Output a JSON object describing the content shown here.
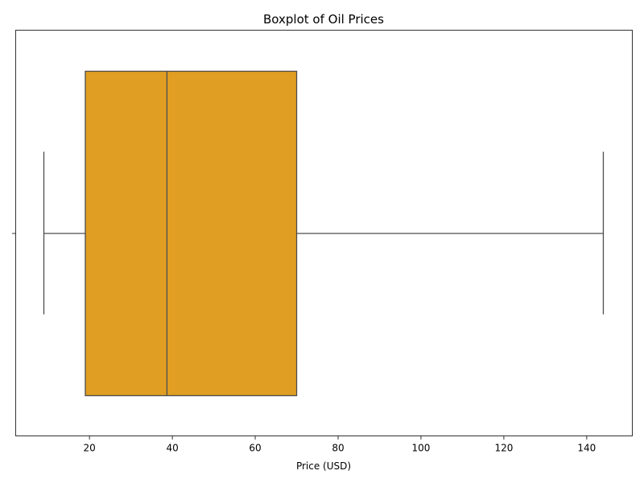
{
  "chart_data": {
    "type": "box",
    "title": "Boxplot of Oil Prices",
    "xlabel": "Price (USD)",
    "ylabel": "",
    "orientation": "horizontal",
    "xlim": [
      2.2,
      151
    ],
    "xticks": [
      20,
      40,
      60,
      80,
      100,
      120,
      140
    ],
    "box": {
      "whisker_low": 9,
      "q1": 19,
      "median": 38.7,
      "q3": 70,
      "whisker_high": 144
    },
    "colors": {
      "box_fill": "#e09e22",
      "line": "#4d4d4d"
    }
  }
}
